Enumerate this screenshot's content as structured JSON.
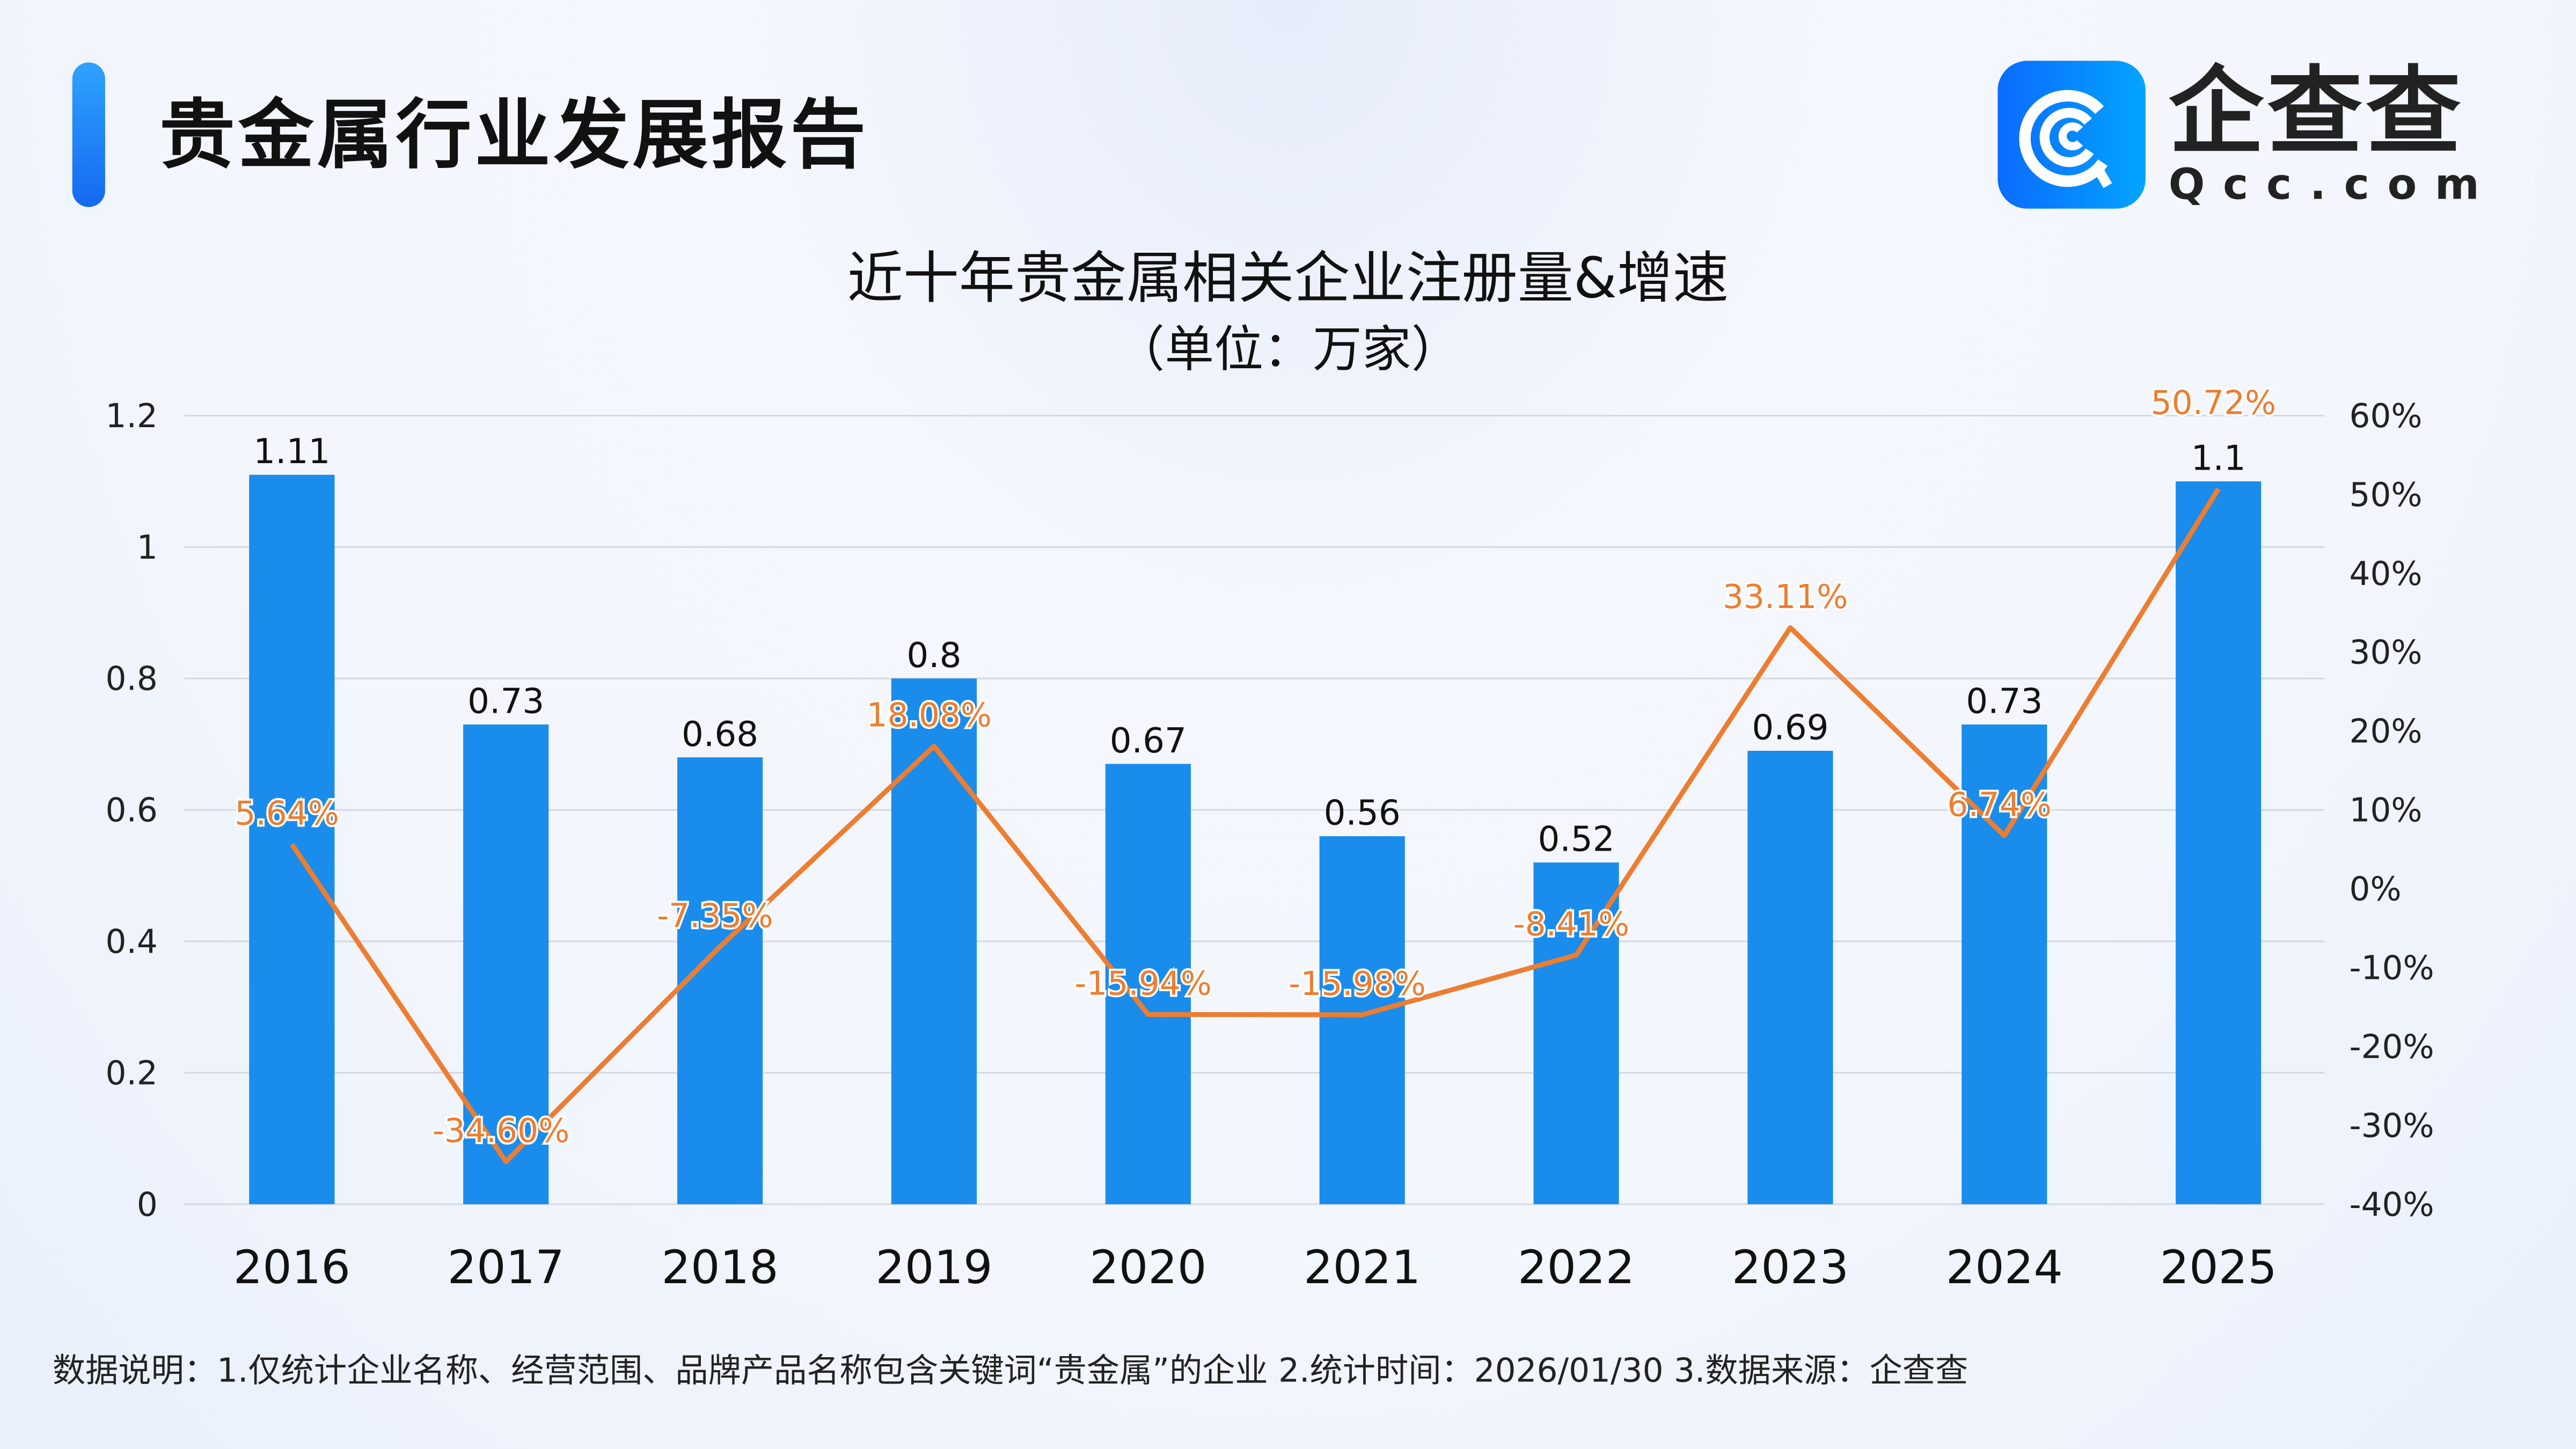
{
  "header": {
    "title": "贵金属行业发展报告"
  },
  "logo": {
    "cn": "企查查",
    "en": "Qcc.com"
  },
  "chart_data": {
    "type": "bar+line",
    "title": "近十年贵金属相关企业注册量&增速",
    "subtitle": "（单位：万家）",
    "categories": [
      "2016",
      "2017",
      "2018",
      "2019",
      "2020",
      "2021",
      "2022",
      "2023",
      "2024",
      "2025"
    ],
    "series": [
      {
        "type": "bar",
        "axis": "left",
        "values": [
          1.11,
          0.73,
          0.68,
          0.8,
          0.67,
          0.56,
          0.52,
          0.69,
          0.73,
          1.1
        ],
        "labels": [
          "1.11",
          "0.73",
          "0.68",
          "0.8",
          "0.67",
          "0.56",
          "0.52",
          "0.69",
          "0.73",
          "1.1"
        ],
        "color": "#1A8CEB"
      },
      {
        "type": "line",
        "axis": "right",
        "values": [
          5.64,
          -34.6,
          -7.35,
          18.08,
          -15.94,
          -15.98,
          -8.41,
          33.11,
          6.74,
          50.72
        ],
        "labels": [
          "5.64%",
          "-34.60%",
          "-7.35%",
          "18.08%",
          "-15.94%",
          "-15.98%",
          "-8.41%",
          "33.11%",
          "6.74%",
          "50.72%"
        ],
        "color": "#ED7D31"
      }
    ],
    "ylim_left": [
      0,
      1.2
    ],
    "yticks_left": [
      "0",
      "0.2",
      "0.4",
      "0.6",
      "0.8",
      "1",
      "1.2"
    ],
    "ylim_right": [
      -40,
      60
    ],
    "yticks_right": [
      "-40%",
      "-30%",
      "-20%",
      "-10%",
      "0%",
      "10%",
      "20%",
      "30%",
      "40%",
      "50%",
      "60%"
    ],
    "grid": true
  },
  "footer": {
    "note": "数据说明：1.仅统计企业名称、经营范围、品牌产品名称包含关键词“贵金属”的企业   2.统计时间：2026/01/30    3.数据来源：企查查"
  }
}
